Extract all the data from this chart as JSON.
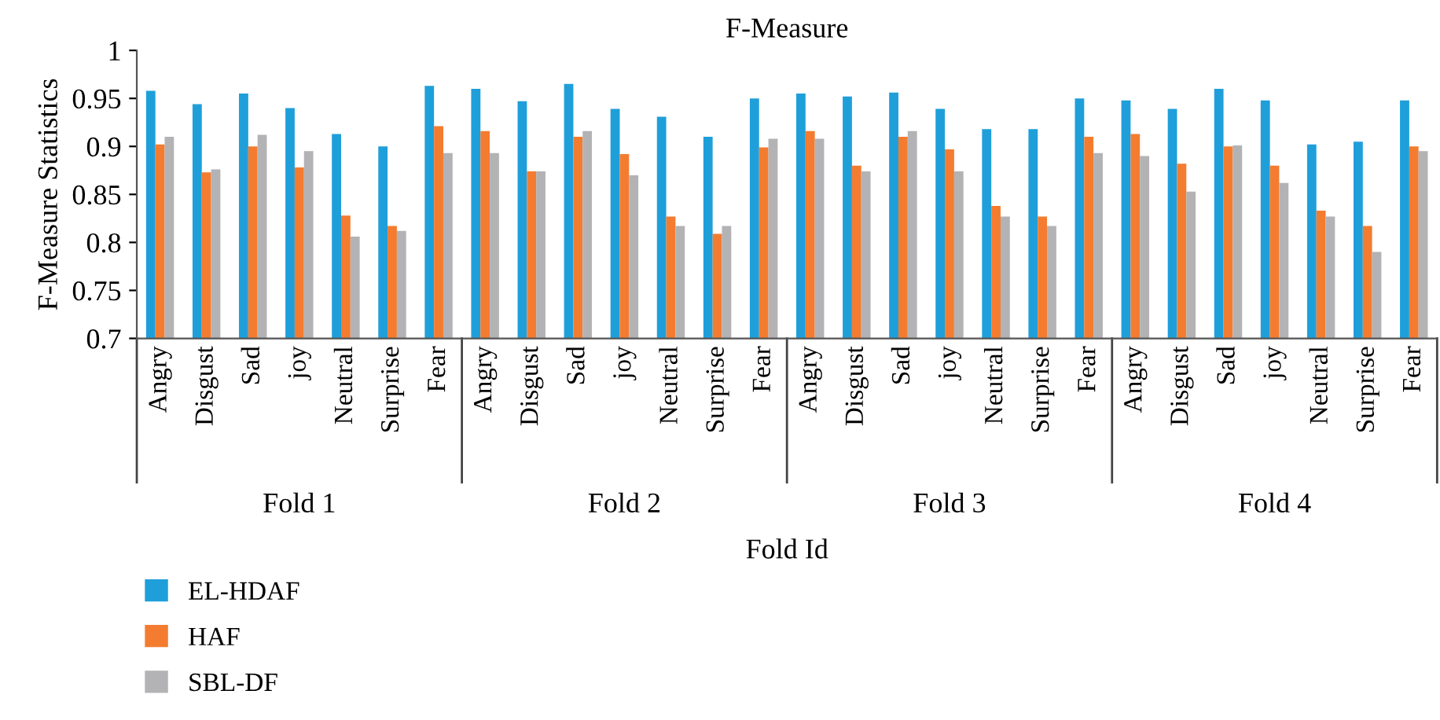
{
  "chart_data": {
    "type": "bar",
    "title": "F-Measure",
    "xlabel": "Fold Id",
    "ylabel": "F-Measure Statistics",
    "categories": [
      "Angry",
      "Disgust",
      "Sad",
      "joy",
      "Neutral",
      "Surprise",
      "Fear",
      "Angry",
      "Disgust",
      "Sad",
      "joy",
      "Neutral",
      "Surprise",
      "Fear",
      "Angry",
      "Disgust",
      "Sad",
      "joy",
      "Neutral",
      "Surprise",
      "Fear",
      "Angry",
      "Disgust",
      "Sad",
      "joy",
      "Neutral",
      "Surprise",
      "Fear"
    ],
    "series": [
      {
        "name": "EL-HDAF",
        "color": "#1f9fda",
        "values": [
          0.958,
          0.944,
          0.955,
          0.94,
          0.913,
          0.9,
          0.963,
          0.96,
          0.947,
          0.965,
          0.939,
          0.931,
          0.91,
          0.95,
          0.955,
          0.952,
          0.956,
          0.939,
          0.918,
          0.918,
          0.95,
          0.948,
          0.939,
          0.96,
          0.948,
          0.902,
          0.905,
          0.948
        ]
      },
      {
        "name": "HAF",
        "color": "#f47c30",
        "values": [
          0.902,
          0.873,
          0.9,
          0.878,
          0.828,
          0.817,
          0.921,
          0.916,
          0.874,
          0.91,
          0.892,
          0.827,
          0.809,
          0.899,
          0.916,
          0.88,
          0.91,
          0.897,
          0.838,
          0.827,
          0.91,
          0.913,
          0.882,
          0.9,
          0.88,
          0.833,
          0.817,
          0.9
        ]
      },
      {
        "name": "SBL-DF",
        "color": "#b3b3b6",
        "values": [
          0.91,
          0.876,
          0.912,
          0.895,
          0.806,
          0.812,
          0.893,
          0.893,
          0.874,
          0.916,
          0.87,
          0.817,
          0.817,
          0.908,
          0.908,
          0.874,
          0.916,
          0.874,
          0.827,
          0.817,
          0.893,
          0.89,
          0.853,
          0.901,
          0.862,
          0.827,
          0.79,
          0.895
        ]
      }
    ],
    "annotations": [
      "Fold 1",
      "Fold 2",
      "Fold 3",
      "Fold 4"
    ],
    "ylim": [
      0.7,
      1
    ],
    "yticks": [
      0.7,
      0.75,
      0.8,
      0.85,
      0.9,
      0.95,
      1
    ],
    "grid": false,
    "legend": "bottom left"
  }
}
